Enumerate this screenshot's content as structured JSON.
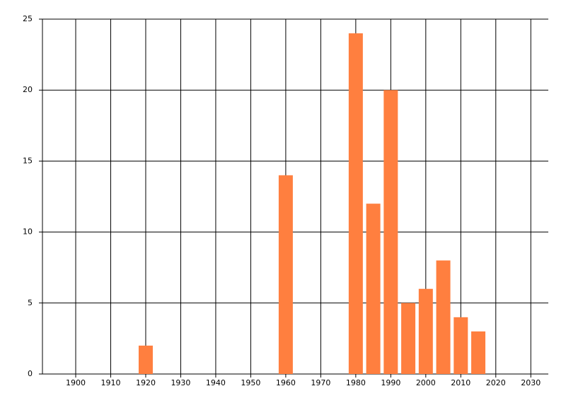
{
  "chart_data": {
    "type": "bar",
    "x": [
      1920,
      1960,
      1980,
      1985,
      1990,
      1995,
      2000,
      2005,
      2010,
      2015
    ],
    "values": [
      2,
      14,
      24,
      12,
      20,
      5,
      6,
      8,
      4,
      3
    ],
    "color": "#ff7f3f",
    "xlim": [
      1890.5,
      2035
    ],
    "xticks": [
      1900,
      1910,
      1920,
      1930,
      1940,
      1950,
      1960,
      1970,
      1980,
      1990,
      2000,
      2010,
      2020,
      2030
    ],
    "ylim": [
      0,
      25
    ],
    "yticks": [
      0,
      5,
      10,
      15,
      20,
      25
    ],
    "grid": true
  }
}
